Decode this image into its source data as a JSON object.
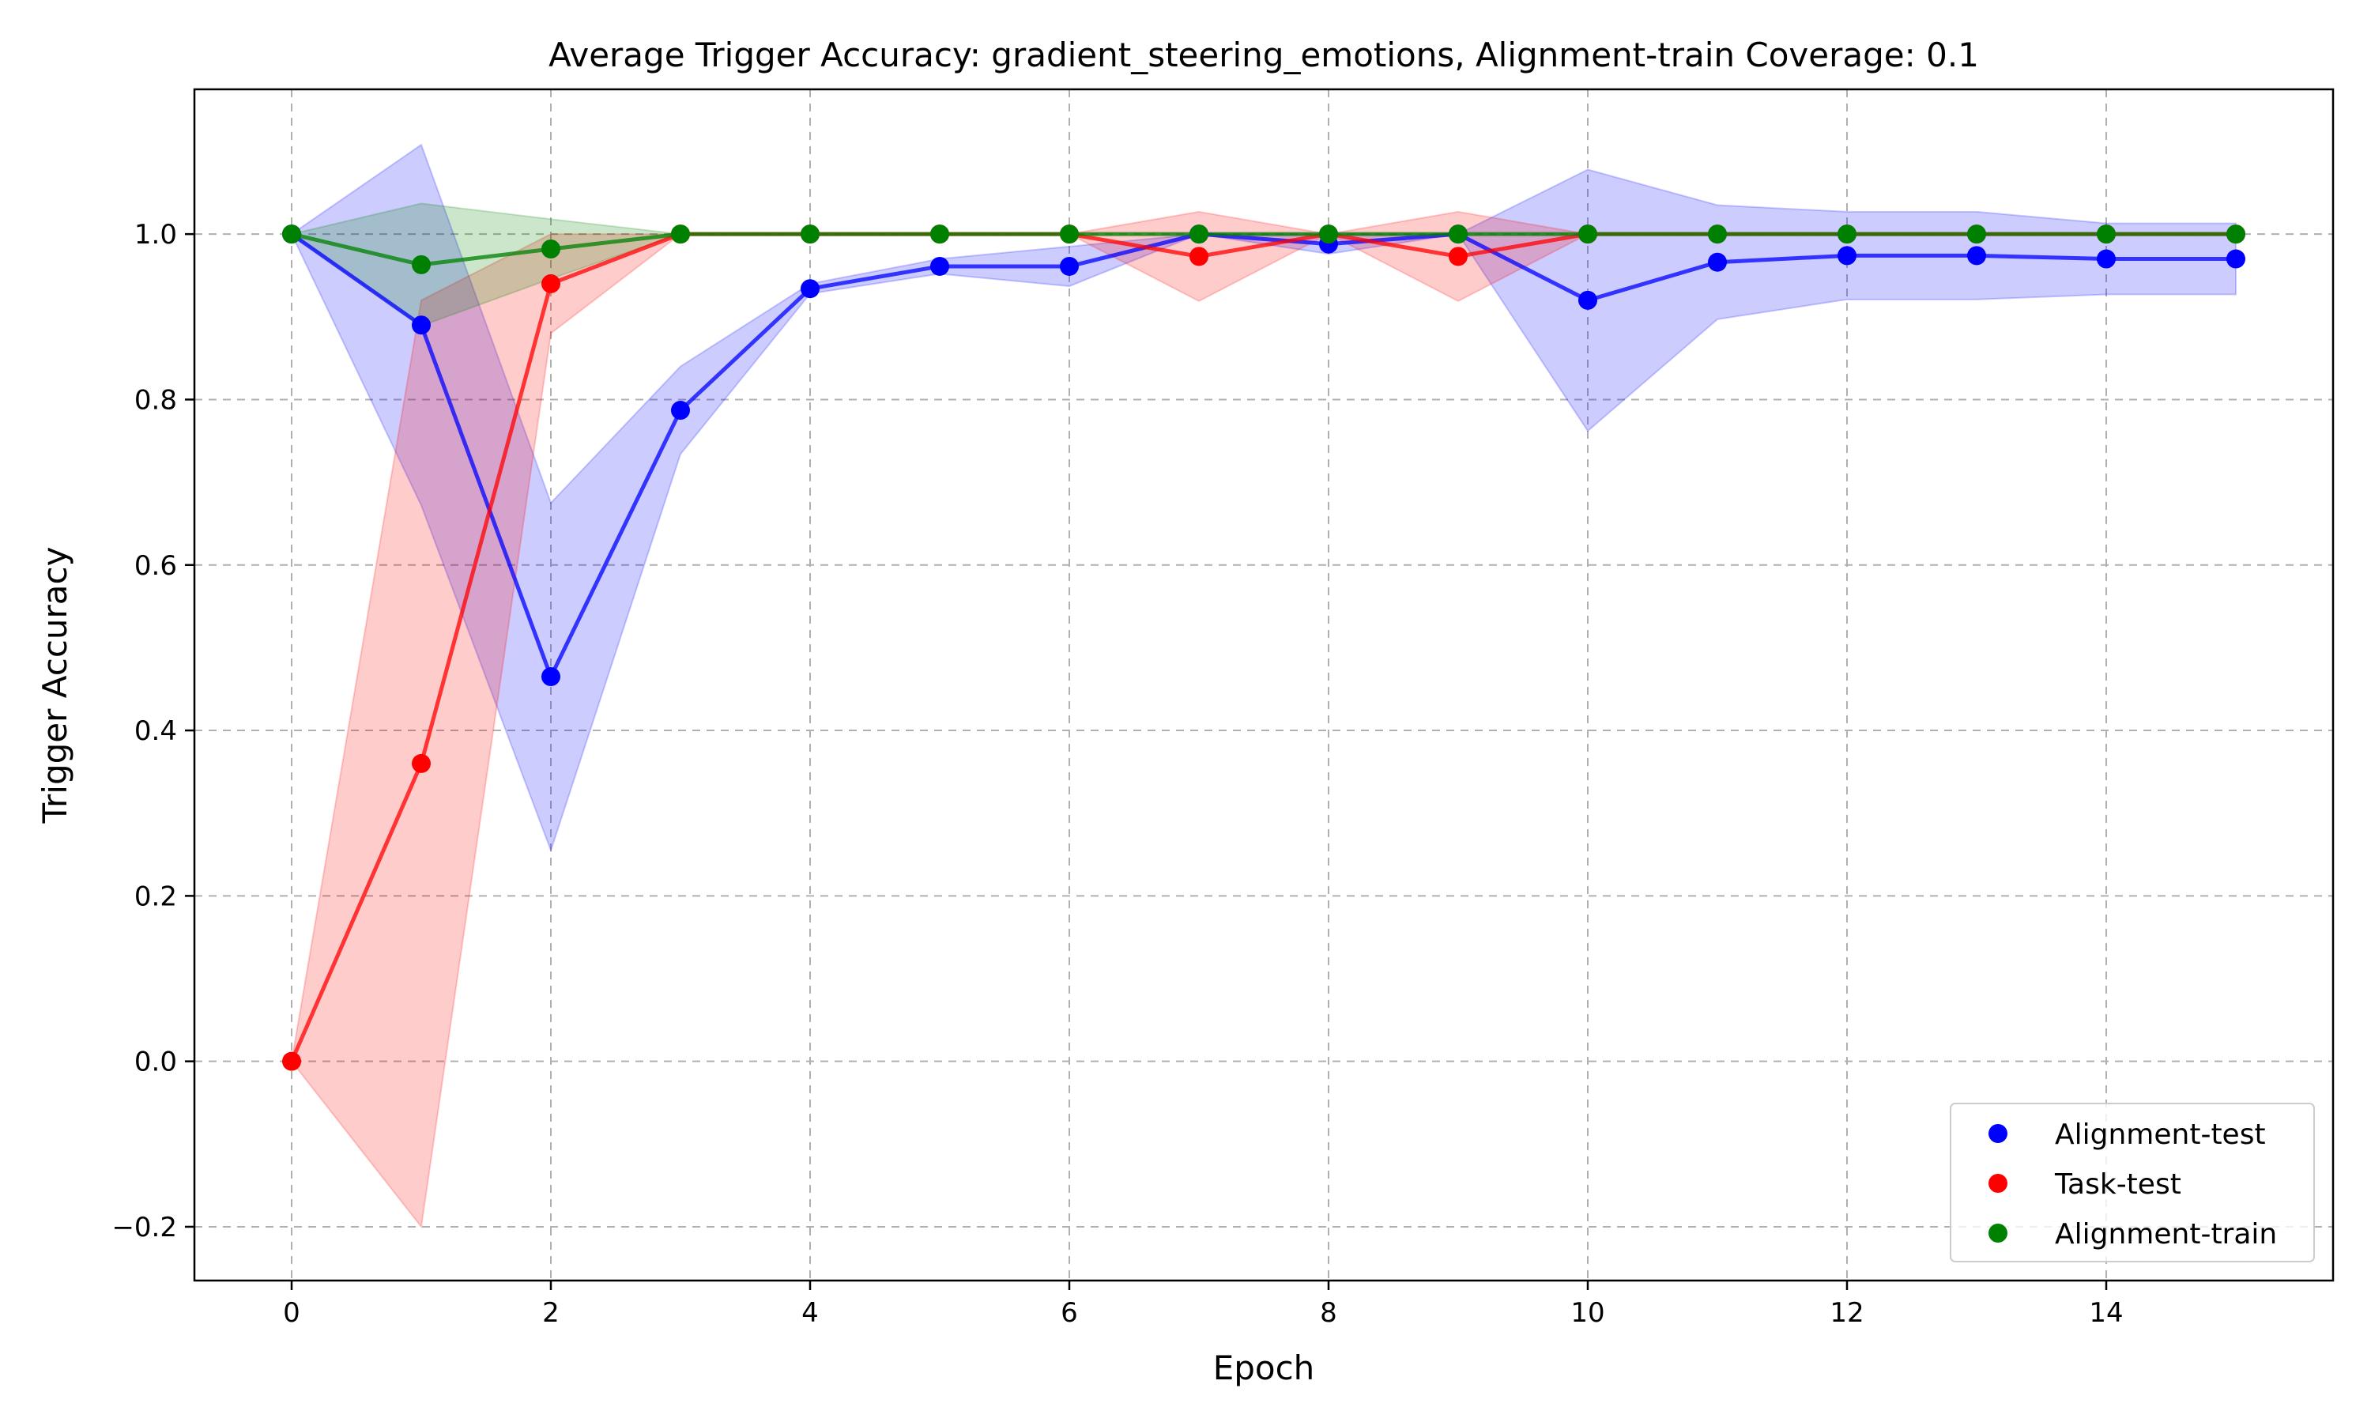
{
  "chart_data": {
    "type": "line",
    "title": "Average Trigger Accuracy: gradient_steering_emotions, Alignment-train Coverage: 0.1",
    "xlabel": "Epoch",
    "ylabel": "Trigger Accuracy",
    "xlim": [
      -0.75,
      15.75
    ],
    "ylim": [
      -0.265,
      1.175
    ],
    "xticks": [
      0,
      2,
      4,
      6,
      8,
      10,
      12,
      14
    ],
    "xtick_labels": [
      "0",
      "2",
      "4",
      "6",
      "8",
      "10",
      "12",
      "14"
    ],
    "yticks": [
      -0.2,
      0.0,
      0.2,
      0.4,
      0.6,
      0.8,
      1.0
    ],
    "ytick_labels": [
      "−0.2",
      "0.0",
      "0.2",
      "0.4",
      "0.6",
      "0.8",
      "1.0"
    ],
    "grid": true,
    "legend_position": "lower-right",
    "x": [
      0,
      1,
      2,
      3,
      4,
      5,
      6,
      7,
      8,
      9,
      10,
      11,
      12,
      13,
      14,
      15
    ],
    "series": [
      {
        "name": "Alignment-test",
        "color": "#0000ff",
        "values": [
          1.0,
          0.89,
          0.465,
          0.787,
          0.934,
          0.961,
          0.961,
          1.0,
          0.988,
          1.0,
          0.92,
          0.966,
          0.974,
          0.974,
          0.97,
          0.97
        ],
        "band_upper": [
          1.0,
          1.108,
          0.675,
          0.84,
          0.94,
          0.97,
          0.985,
          1.0,
          1.0,
          1.0,
          1.078,
          1.035,
          1.027,
          1.027,
          1.013,
          1.013
        ],
        "band_lower": [
          1.0,
          0.672,
          0.255,
          0.734,
          0.928,
          0.952,
          0.937,
          1.0,
          0.976,
          1.0,
          0.762,
          0.897,
          0.921,
          0.921,
          0.927,
          0.927
        ]
      },
      {
        "name": "Task-test",
        "color": "#ff0000",
        "values": [
          0.0,
          0.36,
          0.94,
          1.0,
          1.0,
          1.0,
          1.0,
          0.973,
          1.0,
          0.973,
          1.0,
          1.0,
          1.0,
          1.0,
          1.0,
          1.0
        ],
        "band_upper": [
          0.0,
          0.92,
          1.0,
          1.0,
          1.0,
          1.0,
          1.0,
          1.027,
          1.0,
          1.027,
          1.0,
          1.0,
          1.0,
          1.0,
          1.0,
          1.0
        ],
        "band_lower": [
          0.0,
          -0.2,
          0.88,
          1.0,
          1.0,
          1.0,
          1.0,
          0.919,
          1.0,
          0.919,
          1.0,
          1.0,
          1.0,
          1.0,
          1.0,
          1.0
        ]
      },
      {
        "name": "Alignment-train",
        "color": "#008000",
        "values": [
          1.0,
          0.963,
          0.982,
          1.0,
          1.0,
          1.0,
          1.0,
          1.0,
          1.0,
          1.0,
          1.0,
          1.0,
          1.0,
          1.0,
          1.0,
          1.0
        ],
        "band_upper": [
          1.0,
          1.037,
          1.018,
          1.0,
          1.0,
          1.0,
          1.0,
          1.0,
          1.0,
          1.0,
          1.0,
          1.0,
          1.0,
          1.0,
          1.0,
          1.0
        ],
        "band_lower": [
          1.0,
          0.889,
          0.946,
          1.0,
          1.0,
          1.0,
          1.0,
          1.0,
          1.0,
          1.0,
          1.0,
          1.0,
          1.0,
          1.0,
          1.0,
          1.0
        ]
      }
    ]
  }
}
